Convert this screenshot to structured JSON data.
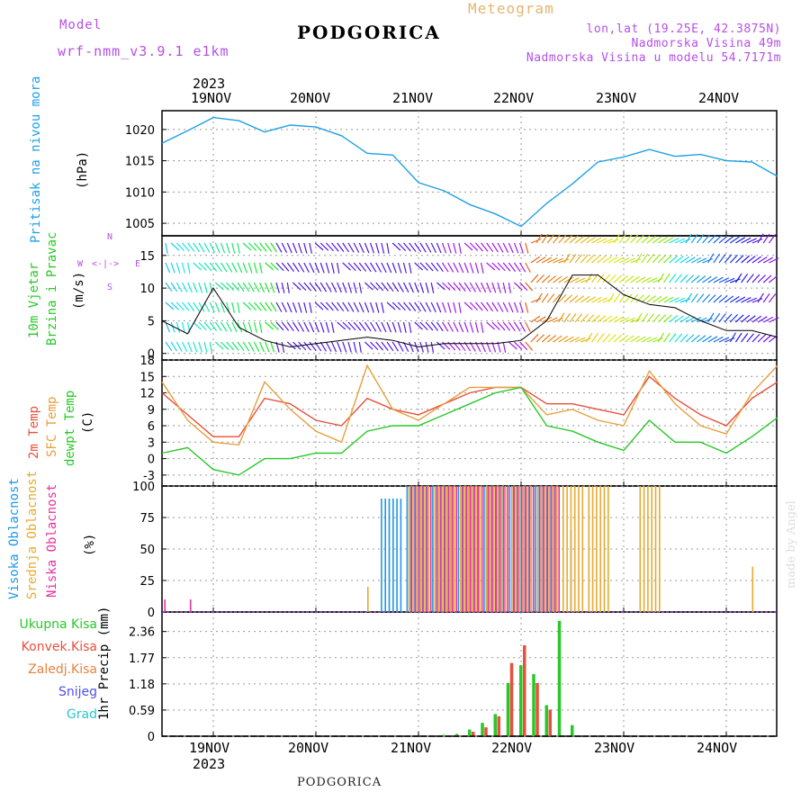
{
  "header": {
    "model_label": "Model",
    "model_name": "wrf-nmm_v3.9.1  e1km",
    "title": "PODGORICA",
    "meteogram": "Meteogram",
    "lonlat": "lon,lat (19.25E, 42.3875N)",
    "elevation": "Nadmorska Visina 49m",
    "model_elevation": "Nadmorska Visina u modelu 54.7171m",
    "year": "2023"
  },
  "footer": {
    "city": "PODGORICA",
    "credit": "made by Angel"
  },
  "days": [
    "19NOV",
    "20NOV",
    "21NOV",
    "22NOV",
    "23NOV",
    "24NOV"
  ],
  "colors": {
    "pressure": "#1ea0e6",
    "temp2m": "#e6503c",
    "sfc": "#e6a03c",
    "dewpt": "#28c828",
    "high": "#1e96e6",
    "mid": "#e6aa32",
    "low": "#e6329e",
    "total": "#28c828",
    "conv": "#e6503c",
    "frozen": "#e6823c",
    "snow": "#5050e6",
    "graupel": "#28c8c8"
  },
  "labels": {
    "pressure": [
      "Pritisak na nivou mora",
      "(hPa)"
    ],
    "wind": [
      "10m Vjetar",
      "Brzina i Pravac",
      "(m/s)"
    ],
    "compass": {
      "n": "N",
      "w": "W",
      "e": "E",
      "s": "S"
    },
    "temp": [
      "2m Temp",
      "SFC Temp",
      "dewpt Temp",
      "(C)"
    ],
    "cloud": [
      "Visoka Oblacnost",
      "Srednja Oblacnost",
      "Niska Oblacnost",
      "(%)"
    ],
    "precip_legend": [
      "Ukupna Kisa",
      "Konvek.Kisa",
      "Zaledj.Kisa",
      "Snijeg",
      "Grad"
    ],
    "precip_axis": "1hr Precip (mm)"
  },
  "chart_data": [
    {
      "type": "line",
      "title": "",
      "ylabel": "Pritisak na nivou mora (hPa)",
      "ylim": [
        1003,
        1023
      ],
      "yticks": [
        1005,
        1010,
        1015,
        1020
      ],
      "x": [
        "18NOV 12",
        "18NOV 18",
        "19NOV 00",
        "19NOV 06",
        "19NOV 12",
        "19NOV 18",
        "20NOV 00",
        "20NOV 06",
        "20NOV 12",
        "20NOV 18",
        "21NOV 00",
        "21NOV 06",
        "21NOV 12",
        "21NOV 18",
        "22NOV 00",
        "22NOV 06",
        "22NOV 12",
        "22NOV 18",
        "23NOV 00",
        "23NOV 06",
        "23NOV 12",
        "23NOV 18",
        "24NOV 00",
        "24NOV 06",
        "24NOV 12"
      ],
      "series": [
        {
          "values": [
            1017.8,
            1019.8,
            1021.9,
            1021.4,
            1019.6,
            1020.7,
            1020.4,
            1019,
            1016.2,
            1015.9,
            1011.5,
            1010.2,
            1008,
            1006.5,
            1004.5,
            1008.2,
            1011.3,
            1014.8,
            1015.6,
            1016.8,
            1015.7,
            1016,
            1015,
            1014.8,
            1012.5
          ]
        }
      ]
    },
    {
      "type": "line",
      "title": "",
      "ylabel": "10m Vjetar Brzina i Pravac (m/s)",
      "ylim": [
        -1,
        18
      ],
      "yticks": [
        0,
        5,
        10,
        15
      ],
      "x": [
        "18NOV 12",
        "18NOV 18",
        "19NOV 00",
        "19NOV 06",
        "19NOV 12",
        "19NOV 18",
        "20NOV 00",
        "20NOV 06",
        "20NOV 12",
        "20NOV 18",
        "21NOV 00",
        "21NOV 06",
        "21NOV 12",
        "21NOV 18",
        "22NOV 00",
        "22NOV 06",
        "22NOV 12",
        "22NOV 18",
        "23NOV 00",
        "23NOV 06",
        "23NOV 12",
        "23NOV 18",
        "24NOV 00",
        "24NOV 06",
        "24NOV 12"
      ],
      "series": [
        {
          "values": [
            5,
            3,
            10,
            4,
            2,
            1,
            1.5,
            2,
            2.5,
            2,
            1,
            1.5,
            1.5,
            1.5,
            2,
            5,
            12,
            12,
            9,
            7.5,
            7,
            5,
            3.5,
            3.5,
            2.5
          ]
        }
      ]
    },
    {
      "type": "line",
      "title": "",
      "ylabel": "2m Temp / SFC Temp / dewpt Temp (C)",
      "ylim": [
        -5,
        18
      ],
      "yticks": [
        -3,
        0,
        3,
        6,
        9,
        12,
        15,
        18
      ],
      "x": [
        "18NOV 12",
        "18NOV 18",
        "19NOV 00",
        "19NOV 06",
        "19NOV 12",
        "19NOV 18",
        "20NOV 00",
        "20NOV 06",
        "20NOV 12",
        "20NOV 18",
        "21NOV 00",
        "21NOV 06",
        "21NOV 12",
        "21NOV 18",
        "22NOV 00",
        "22NOV 06",
        "22NOV 12",
        "22NOV 18",
        "23NOV 00",
        "23NOV 06",
        "23NOV 12",
        "23NOV 18",
        "24NOV 00",
        "24NOV 06",
        "24NOV 12"
      ],
      "series": [
        {
          "name": "2m Temp",
          "values": [
            12,
            8,
            4,
            4,
            11,
            10,
            7,
            6,
            11,
            9,
            8,
            10,
            12,
            13,
            13,
            10,
            10,
            9,
            8,
            15,
            11,
            8,
            6,
            11,
            14
          ]
        },
        {
          "name": "SFC Temp",
          "values": [
            14,
            7,
            3,
            2.5,
            14,
            9,
            5,
            3,
            17,
            9,
            7,
            10,
            13,
            13,
            13,
            8,
            9,
            7,
            6,
            16,
            10,
            6,
            4.5,
            12,
            17
          ]
        },
        {
          "name": "dewpt Temp",
          "values": [
            1,
            2,
            -2,
            -3,
            0,
            0,
            1,
            1,
            5,
            6,
            6,
            8,
            10,
            12,
            13,
            6,
            5,
            3,
            1.5,
            7,
            3,
            3,
            1,
            4,
            7.5
          ]
        }
      ]
    },
    {
      "type": "bar",
      "title": "",
      "ylabel": "Visoka / Srednja / Niska Oblacnost (%)",
      "ylim": [
        0,
        100
      ],
      "yticks": [
        0,
        25,
        50,
        75,
        100
      ],
      "x": [
        "18NOV 12",
        "18NOV 18",
        "19NOV 00",
        "19NOV 06",
        "19NOV 12",
        "19NOV 18",
        "20NOV 00",
        "20NOV 06",
        "20NOV 12",
        "20NOV 18",
        "21NOV 00",
        "21NOV 06",
        "21NOV 12",
        "21NOV 18",
        "22NOV 00",
        "22NOV 06",
        "22NOV 12",
        "22NOV 18",
        "23NOV 00",
        "23NOV 06",
        "23NOV 12",
        "23NOV 18",
        "24NOV 00",
        "24NOV 06",
        "24NOV 12"
      ],
      "series": [
        {
          "name": "Visoka Oblacnost",
          "values": [
            0,
            0,
            0,
            0,
            0,
            0,
            0,
            0,
            0,
            90,
            100,
            100,
            100,
            100,
            100,
            100,
            65,
            0,
            0,
            0,
            0,
            0,
            0,
            0,
            0
          ]
        },
        {
          "name": "Srednja Oblacnost",
          "values": [
            0,
            0,
            0,
            0,
            0,
            0,
            0,
            0,
            20,
            0,
            100,
            100,
            100,
            100,
            100,
            100,
            100,
            100,
            0,
            100,
            0,
            0,
            0,
            36,
            0
          ]
        },
        {
          "name": "Niska Oblacnost",
          "values": [
            10,
            10,
            0,
            0,
            0,
            0,
            0,
            0,
            0,
            0,
            100,
            100,
            100,
            100,
            100,
            100,
            0,
            0,
            0,
            0,
            0,
            0,
            0,
            0,
            0
          ]
        }
      ]
    },
    {
      "type": "bar",
      "title": "",
      "ylabel": "1hr Precip (mm)",
      "ylim": [
        0,
        2.8
      ],
      "yticks": [
        0,
        0.59,
        1.18,
        1.77,
        2.36
      ],
      "x": [
        "21NOV 06",
        "21NOV 09",
        "21NOV 12",
        "21NOV 15",
        "21NOV 18",
        "21NOV 21",
        "22NOV 00",
        "22NOV 03",
        "22NOV 06",
        "22NOV 09",
        "22NOV 12"
      ],
      "series": [
        {
          "name": "Ukupna Kisa",
          "values": [
            0.03,
            0.05,
            0.15,
            0.3,
            0.5,
            1.2,
            1.6,
            1.4,
            0.7,
            2.6,
            0.25
          ]
        },
        {
          "name": "Konvek.Kisa",
          "values": [
            0,
            0.02,
            0.1,
            0.2,
            0.45,
            1.65,
            2.05,
            1.2,
            0.6,
            0,
            0
          ]
        }
      ]
    }
  ]
}
